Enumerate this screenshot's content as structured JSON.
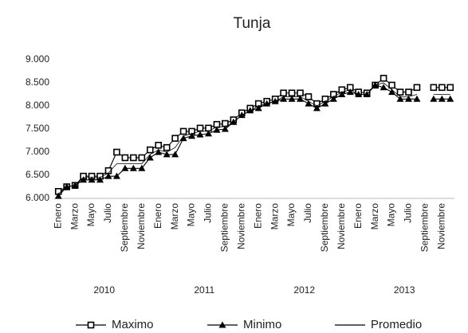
{
  "chart_data": {
    "type": "line",
    "title": "Tunja",
    "categories": [
      "Enero",
      null,
      "Marzo",
      null,
      "Mayo",
      null,
      "Julio",
      null,
      "Septiembre",
      null,
      "Noviembre",
      null,
      "Enero",
      null,
      "Marzo",
      null,
      "Mayo",
      null,
      "Julio",
      null,
      "Septiembre",
      null,
      "Noviembre",
      null,
      "Enero",
      null,
      "Marzo",
      null,
      "Mayo",
      null,
      "Julio",
      null,
      "Septiembre",
      null,
      "Noviembre",
      null,
      "Enero",
      null,
      "Marzo",
      null,
      "Mayo",
      null,
      "Julio",
      null,
      "Septiembre",
      null,
      "Noviembre",
      null
    ],
    "year_labels": [
      "2010",
      "2011",
      "2012",
      "2013"
    ],
    "series": [
      {
        "name": "Maximo",
        "color": "#000000",
        "marker": "square",
        "values": [
          6150,
          6250,
          6280,
          6480,
          6480,
          6480,
          6600,
          7000,
          6880,
          6880,
          6880,
          7050,
          7150,
          7100,
          7300,
          7450,
          7450,
          7520,
          7520,
          7600,
          7620,
          7700,
          7850,
          7950,
          8050,
          8100,
          8150,
          8280,
          8280,
          8280,
          8200,
          8050,
          8150,
          8250,
          8350,
          8400,
          8300,
          8280,
          8450,
          8600,
          8450,
          8300,
          8300,
          8400,
          null,
          8400,
          8400,
          8400
        ]
      },
      {
        "name": "Minimo",
        "color": "#000000",
        "marker": "triangle",
        "values": [
          6050,
          6250,
          6280,
          6400,
          6400,
          6400,
          6480,
          6480,
          6650,
          6650,
          6650,
          6880,
          7000,
          6950,
          6950,
          7300,
          7350,
          7380,
          7400,
          7480,
          7500,
          7650,
          7800,
          7900,
          7950,
          8050,
          8100,
          8150,
          8150,
          8150,
          8050,
          7950,
          8050,
          8150,
          8250,
          8300,
          8250,
          8250,
          8450,
          8400,
          8300,
          8150,
          8150,
          8150,
          null,
          8150,
          8150,
          8150
        ]
      },
      {
        "name": "Promedio",
        "color": "#000000",
        "marker": "none",
        "values": [
          6100,
          6250,
          6280,
          6450,
          6450,
          6450,
          6550,
          6750,
          6750,
          6750,
          6750,
          6950,
          7050,
          7000,
          7100,
          7350,
          7400,
          7450,
          7450,
          7550,
          7550,
          7650,
          7800,
          7900,
          8000,
          8050,
          8100,
          8200,
          8200,
          8200,
          8100,
          8000,
          8100,
          8200,
          8300,
          8350,
          8250,
          8250,
          8450,
          8500,
          8350,
          8200,
          8200,
          8250,
          null,
          8250,
          8250,
          8250
        ]
      }
    ],
    "ylim": [
      6000,
      9000
    ],
    "yticks": [
      {
        "value": 6000,
        "label": "6.000"
      },
      {
        "value": 6500,
        "label": "6.500"
      },
      {
        "value": 7000,
        "label": "7.000"
      },
      {
        "value": 7500,
        "label": "7.500"
      },
      {
        "value": 8000,
        "label": "8.000"
      },
      {
        "value": 8500,
        "label": "8.500"
      },
      {
        "value": 9000,
        "label": "9.000"
      }
    ],
    "grid": false,
    "legend": "bottom"
  }
}
